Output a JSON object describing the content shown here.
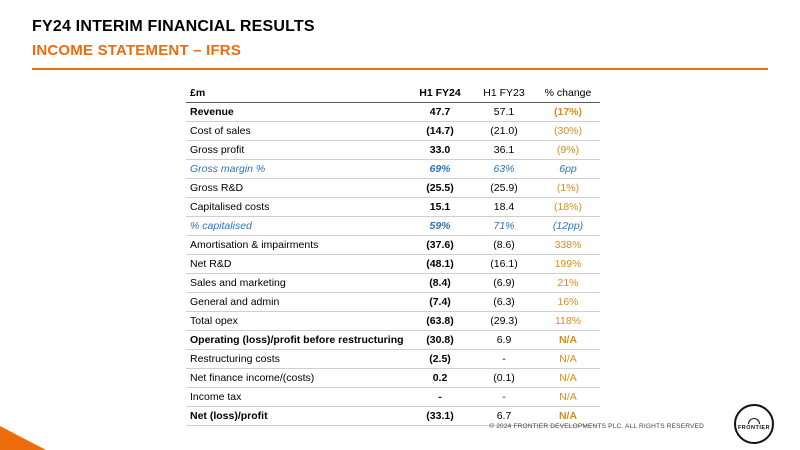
{
  "colors": {
    "brand": "#ed6c0c",
    "change": "#d98c1f",
    "blue": "#2e75b6"
  },
  "header": {
    "title": "FY24 INTERIM FINANCIAL RESULTS",
    "subtitle": "INCOME STATEMENT – IFRS"
  },
  "table": {
    "columns": [
      "£m",
      "H1 FY24",
      "H1 FY23",
      "% change"
    ],
    "rows": [
      {
        "label": "Revenue",
        "fy24": "47.7",
        "fy23": "57.1",
        "change": "(17%)",
        "label_bold": true,
        "change_bold": true
      },
      {
        "label": "Cost of sales",
        "fy24": "(14.7)",
        "fy23": "(21.0)",
        "change": "(30%)"
      },
      {
        "label": "Gross profit",
        "fy24": "33.0",
        "fy23": "36.1",
        "change": "(9%)"
      },
      {
        "label": "Gross margin %",
        "fy24": "69%",
        "fy23": "63%",
        "change": "6pp",
        "italic": true
      },
      {
        "label": "Gross R&D",
        "fy24": "(25.5)",
        "fy23": "(25.9)",
        "change": "(1%)"
      },
      {
        "label": "Capitalised costs",
        "fy24": "15.1",
        "fy23": "18.4",
        "change": "(18%)"
      },
      {
        "label": "% capitalised",
        "fy24": "59%",
        "fy23": "71%",
        "change": "(12pp)",
        "italic": true
      },
      {
        "label": "Amortisation & impairments",
        "fy24": "(37.6)",
        "fy23": "(8.6)",
        "change": "338%"
      },
      {
        "label": "Net R&D",
        "fy24": "(48.1)",
        "fy23": "(16.1)",
        "change": "199%"
      },
      {
        "label": "Sales and marketing",
        "fy24": "(8.4)",
        "fy23": "(6.9)",
        "change": "21%"
      },
      {
        "label": "General and admin",
        "fy24": "(7.4)",
        "fy23": "(6.3)",
        "change": "16%"
      },
      {
        "label": "Total opex",
        "fy24": "(63.8)",
        "fy23": "(29.3)",
        "change": "118%"
      },
      {
        "label": "Operating (loss)/profit before restructuring",
        "fy24": "(30.8)",
        "fy23": "6.9",
        "change": "N/A",
        "label_bold": true,
        "change_bold": true
      },
      {
        "label": "Restructuring costs",
        "fy24": "(2.5)",
        "fy23": "-",
        "change": "N/A"
      },
      {
        "label": "Net finance income/(costs)",
        "fy24": "0.2",
        "fy23": "(0.1)",
        "change": "N/A"
      },
      {
        "label": "Income tax",
        "fy24": "-",
        "fy23": "-",
        "change": "N/A"
      },
      {
        "label": "Net (loss)/profit",
        "fy24": "(33.1)",
        "fy23": "6.7",
        "change": "N/A",
        "label_bold": true,
        "change_bold": true
      }
    ]
  },
  "footer": {
    "copyright": "© 2024 FRONTIER DEVELOPMENTS PLC. ALL RIGHTS RESERVED",
    "logo_text": "FRONTIER"
  }
}
